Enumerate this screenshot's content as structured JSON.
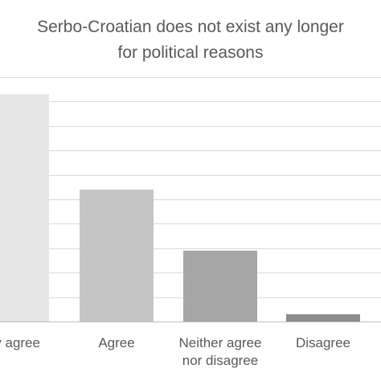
{
  "chart_data": {
    "type": "bar",
    "title_lines": [
      "Serbo-Croatian does not exist any longer",
      "for political reasons"
    ],
    "categories": [
      [
        "gly agree"
      ],
      [
        "Agree"
      ],
      [
        "Neither agree",
        "nor disagree"
      ],
      [
        "Disagree"
      ]
    ],
    "values": [
      9.3,
      5.4,
      2.9,
      0.3
    ],
    "ylim": [
      0,
      10
    ],
    "grid": true,
    "legend": "none",
    "bar_colors": [
      "#e6e6e6",
      "#c5c5c5",
      "#a6a6a6",
      "#8c8c8c"
    ],
    "grid_color": "#d9d9d9",
    "axis_color": "#bfbfbf"
  }
}
